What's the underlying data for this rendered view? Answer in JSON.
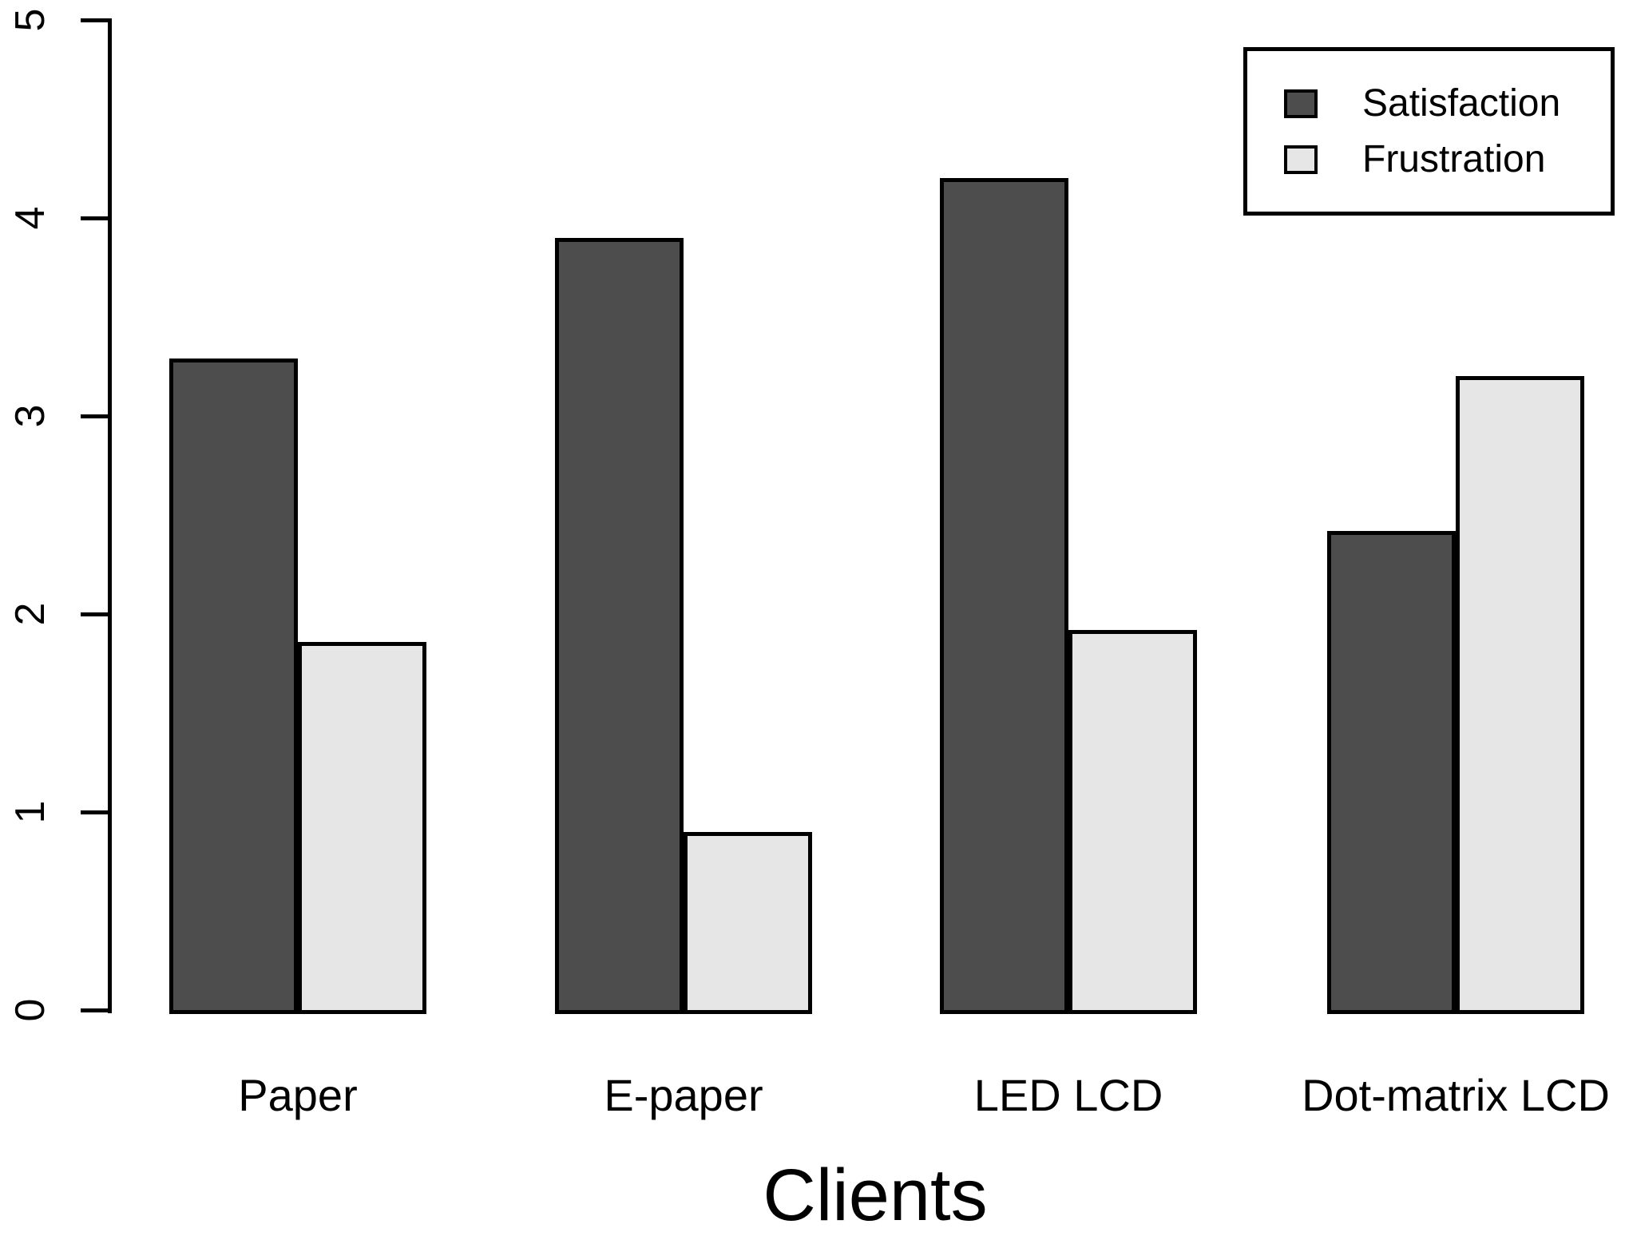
{
  "figure": {
    "background": "#FFFFFF",
    "text_color": "#000000"
  },
  "chart_data": {
    "type": "bar",
    "title": "",
    "xlabel": "Clients",
    "ylabel": "",
    "ylim": [
      0,
      5
    ],
    "yticks": [
      0,
      1,
      2,
      3,
      4,
      5
    ],
    "grid": false,
    "legend_position": "top-right",
    "categories": [
      "Paper",
      "E-paper",
      "LED LCD",
      "Dot-matrix LCD"
    ],
    "series": [
      {
        "name": "Satisfaction",
        "color": "#4D4D4D",
        "values": [
          3.29,
          3.9,
          4.2,
          2.42
        ]
      },
      {
        "name": "Frustration",
        "color": "#E6E6E6",
        "values": [
          1.86,
          0.9,
          1.92,
          3.2
        ]
      }
    ],
    "bar_border_color": "#000000",
    "axis_color": "#000000"
  }
}
